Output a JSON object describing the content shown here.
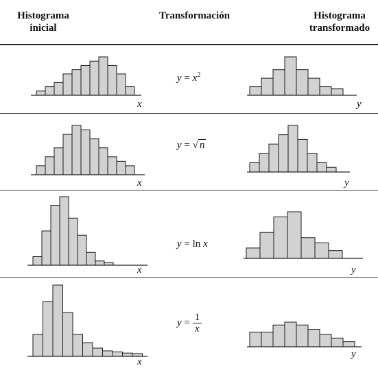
{
  "headers": {
    "initial": "Histograma inicial",
    "transformation": "Transformación",
    "transformed": "Histograma transformado"
  },
  "rows": [
    {
      "formula": {
        "lhs": "y",
        "eq": " = ",
        "rhs": "x",
        "sup": "2"
      },
      "initial": {
        "axis": "x",
        "bars": [
          1,
          2,
          3,
          5,
          6,
          7,
          8,
          9,
          7,
          5,
          2
        ]
      },
      "transformed": {
        "axis": "y",
        "bars": [
          2,
          4,
          6,
          9,
          6,
          4,
          2,
          1.5
        ]
      }
    },
    {
      "formula": {
        "lhs": "y",
        "eq": " = ",
        "rhs": "n",
        "root": "√"
      },
      "initial": {
        "axis": "x",
        "bars": [
          2,
          4,
          6,
          9,
          11,
          10,
          8,
          6,
          4,
          3,
          2
        ]
      },
      "transformed": {
        "axis": "y",
        "bars": [
          2,
          4,
          6,
          8,
          10,
          7,
          4,
          2,
          1
        ]
      }
    },
    {
      "formula": {
        "lhs": "y",
        "eq": " = ",
        "fn": "ln",
        "rhs": "x"
      },
      "initial": {
        "axis": "x",
        "bars": [
          2,
          8,
          14,
          16,
          11,
          7,
          3,
          1,
          0.6
        ]
      },
      "transformed": {
        "axis": "y",
        "bars": [
          2,
          5,
          8,
          9,
          4,
          3,
          1.5
        ]
      }
    },
    {
      "formula": {
        "lhs": "y",
        "eq": " = ",
        "num": "1",
        "den": "x"
      },
      "initial": {
        "axis": "x",
        "bars": [
          4,
          10,
          13,
          8,
          4,
          2.5,
          1.5,
          1,
          0.8,
          0.6,
          0.5
        ]
      },
      "transformed": {
        "axis": "y",
        "bars": [
          2,
          2,
          3,
          3.4,
          3,
          2.4,
          1.7,
          1.2,
          0.7
        ]
      }
    }
  ],
  "colors": {
    "bar_fill": "#d2d2d2",
    "bar_stroke": "#1a1a1a",
    "axis": "#222222"
  }
}
